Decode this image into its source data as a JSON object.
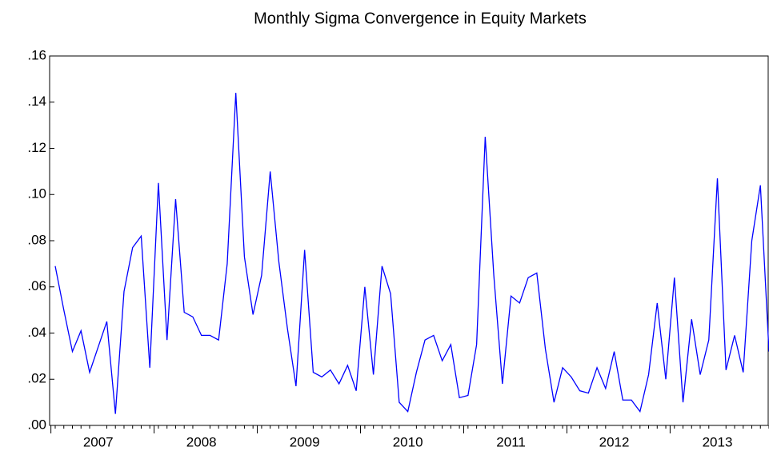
{
  "chart_data": {
    "type": "line",
    "title": "Monthly Sigma Convergence in Equity Markets",
    "categories": [
      null,
      null,
      null,
      null,
      null,
      "2007",
      null,
      null,
      null,
      null,
      null,
      null,
      null,
      null,
      null,
      null,
      null,
      "2008",
      null,
      null,
      null,
      null,
      null,
      null,
      null,
      null,
      null,
      null,
      null,
      "2009",
      null,
      null,
      null,
      null,
      null,
      null,
      null,
      null,
      null,
      null,
      null,
      "2010",
      null,
      null,
      null,
      null,
      null,
      null,
      null,
      null,
      null,
      null,
      null,
      "2011",
      null,
      null,
      null,
      null,
      null,
      null,
      null,
      null,
      null,
      null,
      null,
      "2012",
      null,
      null,
      null,
      null,
      null,
      null,
      null,
      null,
      null,
      null,
      null,
      "2013",
      null,
      null,
      null,
      null,
      null,
      null
    ],
    "series": [
      {
        "color": "#0000ff",
        "values": [
          0.069,
          0.05,
          0.032,
          0.041,
          0.023,
          0.034,
          0.045,
          0.005,
          0.058,
          0.077,
          0.082,
          0.025,
          0.105,
          0.037,
          0.098,
          0.049,
          0.047,
          0.039,
          0.039,
          0.037,
          0.07,
          0.144,
          0.073,
          0.048,
          0.065,
          0.11,
          0.071,
          0.042,
          0.017,
          0.076,
          0.023,
          0.021,
          0.024,
          0.018,
          0.026,
          0.015,
          0.06,
          0.022,
          0.069,
          0.057,
          0.01,
          0.006,
          0.023,
          0.037,
          0.039,
          0.028,
          0.035,
          0.012,
          0.013,
          0.035,
          0.125,
          0.065,
          0.018,
          0.056,
          0.053,
          0.064,
          0.066,
          0.033,
          0.01,
          0.025,
          0.021,
          0.015,
          0.014,
          0.025,
          0.016,
          0.032,
          0.011,
          0.011,
          0.006,
          0.022,
          0.053,
          0.02,
          0.064,
          0.01,
          0.046,
          0.022,
          0.037,
          0.107,
          0.024,
          0.039,
          0.023,
          0.08,
          0.104,
          0.032
        ]
      }
    ],
    "ylim": [
      0,
      0.16
    ],
    "yticks": [
      {
        "value": 0,
        "label": ".00"
      },
      {
        "value": 0.02,
        "label": ".02"
      },
      {
        "value": 0.04,
        "label": ".04"
      },
      {
        "value": 0.06,
        "label": ".06"
      },
      {
        "value": 0.08,
        "label": ".08"
      },
      {
        "value": 0.1,
        "label": ".10"
      },
      {
        "value": 0.12,
        "label": ".12"
      },
      {
        "value": 0.14,
        "label": ".14"
      },
      {
        "value": 0.16,
        "label": ".16"
      }
    ]
  }
}
